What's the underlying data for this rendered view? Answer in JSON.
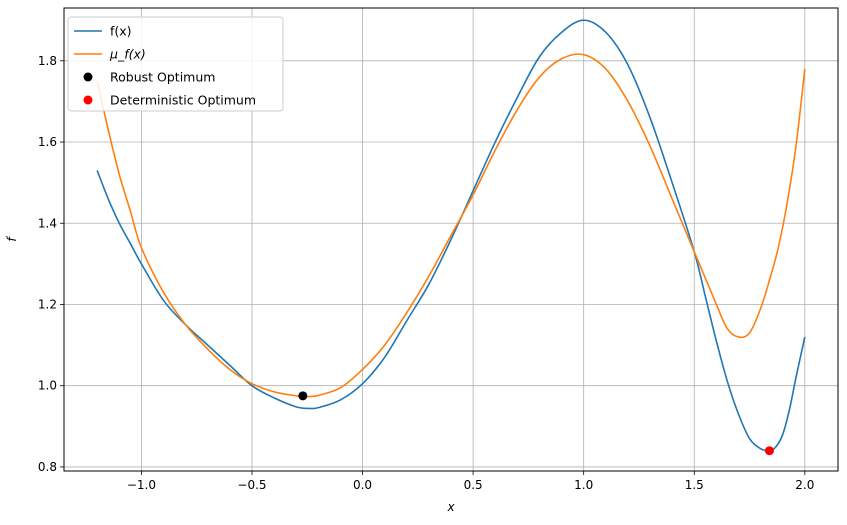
{
  "chart_data": {
    "type": "line",
    "title": "",
    "xlabel": "x",
    "ylabel": "f",
    "xlim": [
      -1.35,
      2.15
    ],
    "ylim": [
      0.79,
      1.93
    ],
    "grid": true,
    "legend_position": "top-left",
    "xticks": [
      -1.0,
      -0.5,
      0.0,
      0.5,
      1.0,
      1.5,
      2.0
    ],
    "xtick_labels": [
      "−1.0",
      "−0.5",
      "0.0",
      "0.5",
      "1.0",
      "1.5",
      "2.0"
    ],
    "yticks": [
      0.8,
      1.0,
      1.2,
      1.4,
      1.6,
      1.8
    ],
    "ytick_labels": [
      "0.8",
      "1.0",
      "1.2",
      "1.4",
      "1.6",
      "1.8"
    ],
    "series": [
      {
        "name": "f(x)",
        "color": "#1f77b4",
        "x": [
          -1.2,
          -1.15,
          -1.1,
          -1.05,
          -1.0,
          -0.9,
          -0.8,
          -0.7,
          -0.6,
          -0.5,
          -0.4,
          -0.3,
          -0.24,
          -0.2,
          -0.1,
          0.0,
          0.1,
          0.2,
          0.3,
          0.4,
          0.5,
          0.6,
          0.7,
          0.8,
          0.9,
          1.0,
          1.1,
          1.2,
          1.3,
          1.4,
          1.5,
          1.55,
          1.6,
          1.65,
          1.7,
          1.75,
          1.8,
          1.84,
          1.87,
          1.9,
          1.93,
          1.96,
          2.0
        ],
        "y": [
          1.53,
          1.46,
          1.4,
          1.35,
          1.3,
          1.21,
          1.15,
          1.1,
          1.05,
          1.0,
          0.97,
          0.948,
          0.944,
          0.946,
          0.965,
          1.005,
          1.07,
          1.16,
          1.25,
          1.36,
          1.48,
          1.6,
          1.71,
          1.81,
          1.87,
          1.9,
          1.87,
          1.79,
          1.66,
          1.5,
          1.33,
          1.22,
          1.11,
          1.01,
          0.93,
          0.87,
          0.845,
          0.84,
          0.85,
          0.88,
          0.94,
          1.02,
          1.12
        ]
      },
      {
        "name": "μ_f(x)",
        "color": "#ff7f0e",
        "x": [
          -1.2,
          -1.15,
          -1.1,
          -1.05,
          -1.0,
          -0.9,
          -0.8,
          -0.7,
          -0.6,
          -0.5,
          -0.4,
          -0.3,
          -0.26,
          -0.2,
          -0.1,
          0.0,
          0.1,
          0.2,
          0.3,
          0.4,
          0.5,
          0.6,
          0.7,
          0.8,
          0.9,
          1.0,
          1.1,
          1.2,
          1.3,
          1.4,
          1.5,
          1.6,
          1.65,
          1.7,
          1.75,
          1.8,
          1.84,
          1.88,
          1.92,
          1.96,
          2.0
        ],
        "y": [
          1.75,
          1.63,
          1.52,
          1.43,
          1.34,
          1.23,
          1.15,
          1.09,
          1.04,
          1.005,
          0.985,
          0.975,
          0.973,
          0.976,
          0.995,
          1.04,
          1.1,
          1.18,
          1.27,
          1.37,
          1.47,
          1.58,
          1.68,
          1.76,
          1.805,
          1.815,
          1.78,
          1.7,
          1.59,
          1.46,
          1.33,
          1.2,
          1.14,
          1.12,
          1.13,
          1.19,
          1.26,
          1.34,
          1.45,
          1.59,
          1.78
        ]
      }
    ],
    "points": [
      {
        "name": "Robust Optimum",
        "color": "#000000",
        "x": -0.27,
        "y": 0.975
      },
      {
        "name": "Deterministic Optimum",
        "color": "#ff0000",
        "x": 1.84,
        "y": 0.84
      }
    ]
  }
}
